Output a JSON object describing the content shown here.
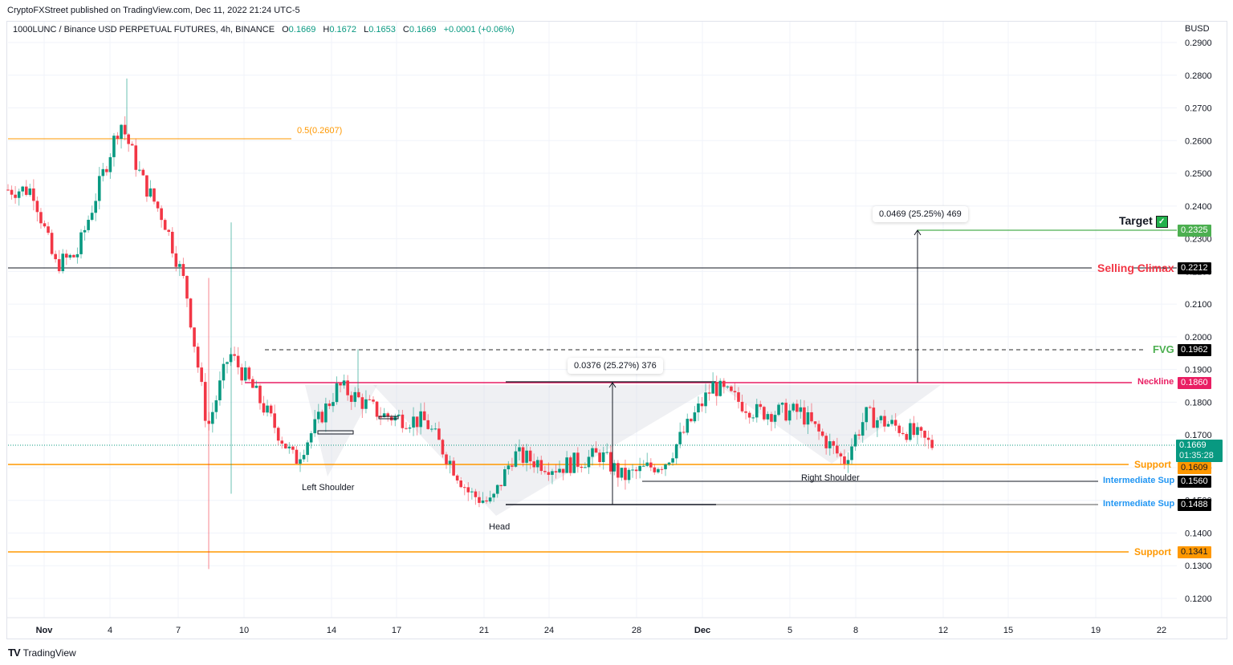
{
  "publisher": {
    "text": "CryptoFXStreet published on TradingView.com, Dec 11, 2022 21:24 UTC-5"
  },
  "legend": {
    "symbol": "1000LUNC / Binance USD PERPETUAL FUTURES, 4h, BINANCE",
    "open_label": "O",
    "open": "0.1669",
    "high_label": "H",
    "high": "0.1672",
    "low_label": "L",
    "low": "0.1653",
    "close_label": "C",
    "close": "0.1669",
    "change": "+0.0001 (+0.06%)"
  },
  "price_axis": {
    "currency": "BUSD",
    "ticks": [
      "0.2900",
      "0.2800",
      "0.2700",
      "0.2600",
      "0.2500",
      "0.2400",
      "0.2300",
      "0.2200",
      "0.2100",
      "0.2000",
      "0.1900",
      "0.1800",
      "0.1700",
      "0.1600",
      "0.1500",
      "0.1400",
      "0.1300",
      "0.1200"
    ]
  },
  "time_axis": {
    "ticks": [
      "Nov",
      "4",
      "7",
      "10",
      "14",
      "17",
      "21",
      "24",
      "28",
      "Dec",
      "5",
      "8",
      "12",
      "15",
      "19",
      "22"
    ]
  },
  "levels": {
    "target": {
      "label": "Target",
      "value": "0.2325",
      "color": "#4caf50",
      "check": "✓"
    },
    "selling_climax": {
      "label": "Selling Climax",
      "value": "0.2212",
      "color": "#f23645"
    },
    "fvg": {
      "label": "FVG",
      "value": "0.1962",
      "color": "#4caf50"
    },
    "neckline": {
      "label": "Neckline",
      "value": "0.1860",
      "color": "#e91e63"
    },
    "current": {
      "value": "0.1669",
      "countdown": "01:35:28",
      "color": "#089981"
    },
    "support_1": {
      "label": "Support",
      "value": "0.1609",
      "color": "#ff9800"
    },
    "intermediate_1": {
      "label": "Intermediate Sup",
      "value": "0.1560",
      "color": "#2196f3"
    },
    "intermediate_2": {
      "label": "Intermediate Sup",
      "value": "0.1488",
      "color": "#2196f3"
    },
    "support_2": {
      "label": "Support",
      "value": "0.1341",
      "color": "#ff9800"
    },
    "fib": {
      "label": "0.5(0.2607)",
      "color": "#ff9800"
    }
  },
  "measurements": {
    "pattern_depth": "0.0376 (25.27%) 376",
    "projection": "0.0469 (25.25%) 469"
  },
  "pattern_labels": {
    "left_shoulder": "Left Shoulder",
    "head": "Head",
    "right_shoulder": "Right Shoulder"
  },
  "footer": {
    "logo_mark": "TV",
    "logo_text": "TradingView"
  },
  "chart_data": {
    "type": "candlestick",
    "title": "1000LUNC / Binance USD PERPETUAL FUTURES, 4h, BINANCE",
    "xlabel": "",
    "ylabel": "BUSD",
    "ylim": [
      0.115,
      0.292
    ],
    "x_tick_labels": [
      "Nov",
      "4",
      "7",
      "10",
      "14",
      "17",
      "21",
      "24",
      "28",
      "Dec",
      "5",
      "8",
      "12",
      "15",
      "19",
      "22"
    ],
    "y_tick_labels": [
      "0.2900",
      "0.2800",
      "0.2700",
      "0.2600",
      "0.2500",
      "0.2400",
      "0.2300",
      "0.2200",
      "0.2100",
      "0.2000",
      "0.1900",
      "0.1800",
      "0.1700",
      "0.1600",
      "0.1500",
      "0.1400",
      "0.1300",
      "0.1200"
    ],
    "grid": true,
    "last_ohlc": {
      "open": 0.1669,
      "high": 0.1672,
      "low": 0.1653,
      "close": 0.1669,
      "change": 0.0001,
      "change_pct": 0.06
    },
    "horizontal_levels": [
      {
        "name": "Target",
        "price": 0.2325
      },
      {
        "name": "Selling Climax",
        "price": 0.2212
      },
      {
        "name": "FVG",
        "price": 0.1962
      },
      {
        "name": "Neckline",
        "price": 0.186
      },
      {
        "name": "Support",
        "price": 0.1609
      },
      {
        "name": "Intermediate Sup",
        "price": 0.156
      },
      {
        "name": "Intermediate Sup",
        "price": 0.1488
      },
      {
        "name": "Support",
        "price": 0.1341
      },
      {
        "name": "Fib 0.5",
        "price": 0.2607
      }
    ],
    "annotations": [
      "Left Shoulder",
      "Head",
      "Right Shoulder",
      "0.0376 (25.27%) 376",
      "0.0469 (25.25%) 469"
    ],
    "approx_price_path": [
      {
        "date": "Nov 1",
        "price": 0.245
      },
      {
        "date": "Nov 2",
        "price": 0.222
      },
      {
        "date": "Nov 3",
        "price": 0.225
      },
      {
        "date": "Nov 5",
        "price": 0.266
      },
      {
        "date": "Nov 6",
        "price": 0.248
      },
      {
        "date": "Nov 7",
        "price": 0.236
      },
      {
        "date": "Nov 8",
        "price": 0.215
      },
      {
        "date": "Nov 9",
        "price": 0.172
      },
      {
        "date": "Nov 10",
        "price": 0.195
      },
      {
        "date": "Nov 11",
        "price": 0.185
      },
      {
        "date": "Nov 13",
        "price": 0.162
      },
      {
        "date": "Nov 15",
        "price": 0.185
      },
      {
        "date": "Nov 17",
        "price": 0.176
      },
      {
        "date": "Nov 19",
        "price": 0.174
      },
      {
        "date": "Nov 21",
        "price": 0.152
      },
      {
        "date": "Nov 22",
        "price": 0.149
      },
      {
        "date": "Nov 23",
        "price": 0.164
      },
      {
        "date": "Nov 25",
        "price": 0.16
      },
      {
        "date": "Nov 27",
        "price": 0.164
      },
      {
        "date": "Nov 28",
        "price": 0.157
      },
      {
        "date": "Nov 30",
        "price": 0.162
      },
      {
        "date": "Dec 1",
        "price": 0.185
      },
      {
        "date": "Dec 3",
        "price": 0.177
      },
      {
        "date": "Dec 5",
        "price": 0.177
      },
      {
        "date": "Dec 7",
        "price": 0.162
      },
      {
        "date": "Dec 8",
        "price": 0.176
      },
      {
        "date": "Dec 10",
        "price": 0.171
      },
      {
        "date": "Dec 11",
        "price": 0.1669
      }
    ]
  }
}
